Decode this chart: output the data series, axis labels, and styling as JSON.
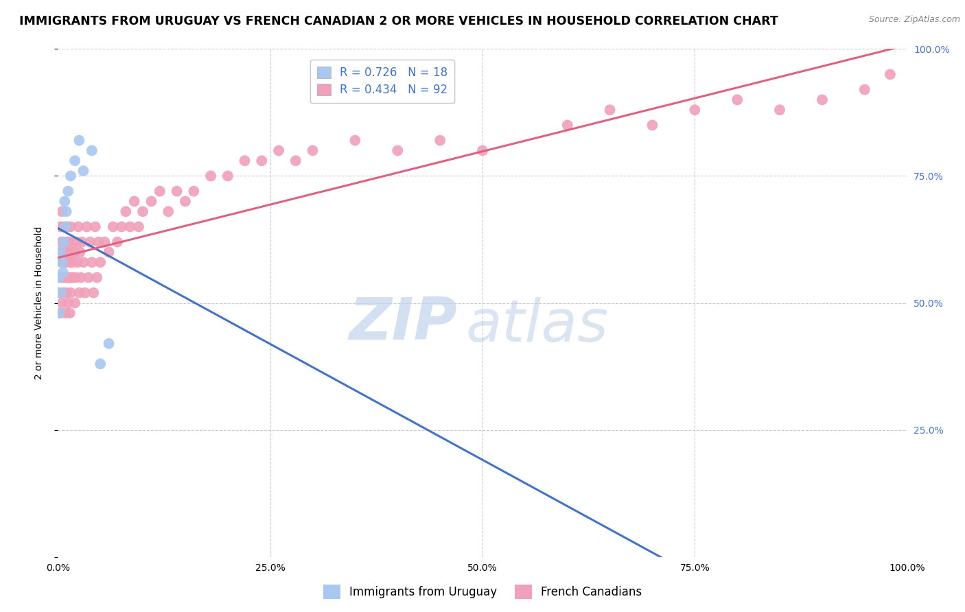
{
  "title": "IMMIGRANTS FROM URUGUAY VS FRENCH CANADIAN 2 OR MORE VEHICLES IN HOUSEHOLD CORRELATION CHART",
  "source": "Source: ZipAtlas.com",
  "ylabel": "2 or more Vehicles in Household",
  "blue_R": 0.726,
  "blue_N": 18,
  "pink_R": 0.434,
  "pink_N": 92,
  "blue_color": "#A8C8F0",
  "pink_color": "#F0A0B8",
  "blue_line_color": "#4472C4",
  "pink_line_color": "#E06080",
  "legend_label_blue": "Immigrants from Uruguay",
  "legend_label_pink": "French Canadians",
  "blue_scatter_x": [
    0.001,
    0.002,
    0.003,
    0.004,
    0.005,
    0.006,
    0.007,
    0.008,
    0.009,
    0.01,
    0.012,
    0.015,
    0.02,
    0.025,
    0.03,
    0.04,
    0.05,
    0.06
  ],
  "blue_scatter_y": [
    0.55,
    0.48,
    0.6,
    0.52,
    0.58,
    0.56,
    0.62,
    0.7,
    0.65,
    0.68,
    0.72,
    0.75,
    0.78,
    0.82,
    0.76,
    0.8,
    0.38,
    0.42
  ],
  "pink_scatter_x": [
    0.001,
    0.002,
    0.002,
    0.003,
    0.003,
    0.004,
    0.004,
    0.005,
    0.005,
    0.005,
    0.006,
    0.006,
    0.007,
    0.007,
    0.008,
    0.008,
    0.009,
    0.009,
    0.01,
    0.01,
    0.011,
    0.011,
    0.012,
    0.012,
    0.013,
    0.013,
    0.014,
    0.014,
    0.015,
    0.015,
    0.016,
    0.016,
    0.017,
    0.018,
    0.019,
    0.02,
    0.02,
    0.021,
    0.022,
    0.023,
    0.024,
    0.025,
    0.026,
    0.027,
    0.028,
    0.03,
    0.032,
    0.034,
    0.036,
    0.038,
    0.04,
    0.042,
    0.044,
    0.046,
    0.048,
    0.05,
    0.055,
    0.06,
    0.065,
    0.07,
    0.075,
    0.08,
    0.085,
    0.09,
    0.095,
    0.1,
    0.11,
    0.12,
    0.13,
    0.14,
    0.15,
    0.16,
    0.18,
    0.2,
    0.22,
    0.24,
    0.26,
    0.28,
    0.3,
    0.35,
    0.4,
    0.45,
    0.5,
    0.6,
    0.65,
    0.7,
    0.75,
    0.8,
    0.85,
    0.9,
    0.95,
    0.98
  ],
  "pink_scatter_y": [
    0.52,
    0.55,
    0.6,
    0.48,
    0.65,
    0.58,
    0.62,
    0.5,
    0.55,
    0.68,
    0.58,
    0.62,
    0.52,
    0.65,
    0.55,
    0.6,
    0.48,
    0.58,
    0.52,
    0.62,
    0.55,
    0.65,
    0.5,
    0.6,
    0.55,
    0.62,
    0.48,
    0.58,
    0.52,
    0.65,
    0.55,
    0.6,
    0.58,
    0.55,
    0.62,
    0.5,
    0.6,
    0.55,
    0.62,
    0.58,
    0.65,
    0.52,
    0.6,
    0.55,
    0.62,
    0.58,
    0.52,
    0.65,
    0.55,
    0.62,
    0.58,
    0.52,
    0.65,
    0.55,
    0.62,
    0.58,
    0.62,
    0.6,
    0.65,
    0.62,
    0.65,
    0.68,
    0.65,
    0.7,
    0.65,
    0.68,
    0.7,
    0.72,
    0.68,
    0.72,
    0.7,
    0.72,
    0.75,
    0.75,
    0.78,
    0.78,
    0.8,
    0.78,
    0.8,
    0.82,
    0.8,
    0.82,
    0.8,
    0.85,
    0.88,
    0.85,
    0.88,
    0.9,
    0.88,
    0.9,
    0.92,
    0.95
  ],
  "watermark_zip": "ZIP",
  "watermark_atlas": "atlas",
  "background_color": "#ffffff",
  "grid_color": "#cccccc",
  "title_fontsize": 12.5,
  "axis_label_fontsize": 10,
  "tick_fontsize": 10,
  "legend_fontsize": 12,
  "right_tick_color": "#4472C4",
  "xmin": 0.0,
  "xmax": 1.0,
  "ymin": 0.0,
  "ymax": 1.0
}
